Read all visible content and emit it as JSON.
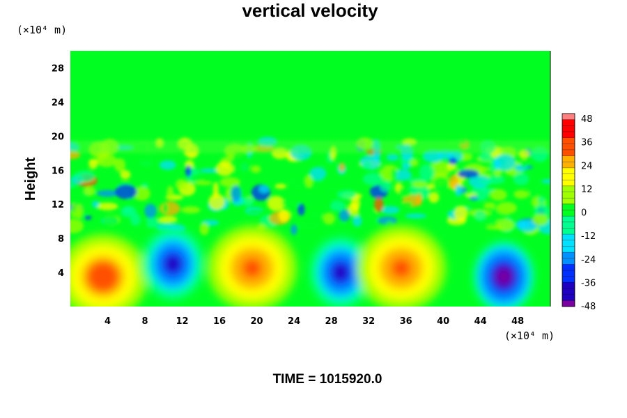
{
  "chart_data": {
    "type": "heatmap",
    "title": "vertical velocity",
    "xlabel": "",
    "ylabel": "Height",
    "x_unit_label": "(×10⁴ m)",
    "y_unit_label": "(×10⁴ m)",
    "xlim": [
      0,
      51.5
    ],
    "ylim": [
      0,
      30
    ],
    "x_ticks": [
      4,
      8,
      12,
      16,
      20,
      24,
      28,
      32,
      36,
      40,
      44,
      48
    ],
    "y_ticks": [
      4,
      8,
      12,
      16,
      20,
      24,
      28
    ],
    "colorbar": {
      "min": -48,
      "max": 48,
      "ticks": [
        48,
        36,
        24,
        12,
        0,
        -12,
        -24,
        -36,
        -48
      ],
      "colors": [
        "#7a00a0",
        "#2000c0",
        "#0030ff",
        "#0090ff",
        "#00e0ff",
        "#00ff90",
        "#00ff20",
        "#a0ff00",
        "#ffff00",
        "#ffb000",
        "#ff5000",
        "#ff0000",
        "#ff8080"
      ]
    },
    "features": [
      {
        "kind": "updraft",
        "x": 3.5,
        "y": 3.5,
        "peak": 34
      },
      {
        "kind": "downdraft",
        "x": 11,
        "y": 5,
        "peak": -38
      },
      {
        "kind": "updraft",
        "x": 19.5,
        "y": 4.5,
        "peak": 30
      },
      {
        "kind": "downdraft",
        "x": 29,
        "y": 4,
        "peak": -38
      },
      {
        "kind": "updraft",
        "x": 35.5,
        "y": 4.5,
        "peak": 30
      },
      {
        "kind": "downdraft",
        "x": 46.5,
        "y": 3.5,
        "peak": -48
      }
    ]
  },
  "footer": {
    "time_label": "TIME = 1015920.0"
  }
}
